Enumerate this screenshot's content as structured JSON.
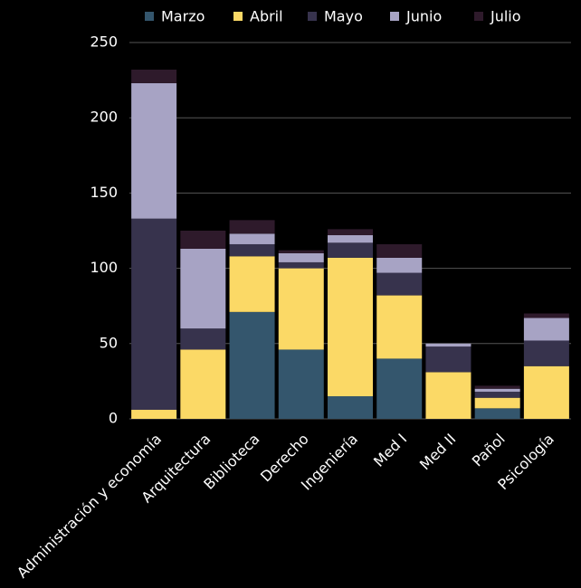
{
  "chart_data": {
    "type": "stacked_bar",
    "categories": [
      "Administración y economía",
      "Arquitectura",
      "Biblioteca",
      "Derecho",
      "Ingeniería",
      "Med I",
      "Med II",
      "Pañol",
      "Psicología"
    ],
    "series": [
      {
        "name": "Marzo",
        "color": "#34566d",
        "values": [
          0,
          0,
          71,
          46,
          15,
          40,
          0,
          7,
          0
        ]
      },
      {
        "name": "Abril",
        "color": "#fbd966",
        "values": [
          6,
          46,
          37,
          54,
          92,
          42,
          31,
          7,
          35
        ]
      },
      {
        "name": "Mayo",
        "color": "#37334d",
        "values": [
          127,
          14,
          8,
          4,
          10,
          15,
          17,
          4,
          17
        ]
      },
      {
        "name": "Junio",
        "color": "#a7a3c4",
        "values": [
          90,
          53,
          7,
          6,
          5,
          10,
          2,
          2,
          15
        ]
      },
      {
        "name": "Julio",
        "color": "#2e1a2b",
        "values": [
          9,
          12,
          9,
          2,
          4,
          9,
          0,
          2,
          3
        ]
      }
    ],
    "ylim": [
      0,
      250
    ],
    "yticks": [
      0,
      50,
      100,
      150,
      200,
      250
    ],
    "grid": true,
    "legend": "top"
  }
}
